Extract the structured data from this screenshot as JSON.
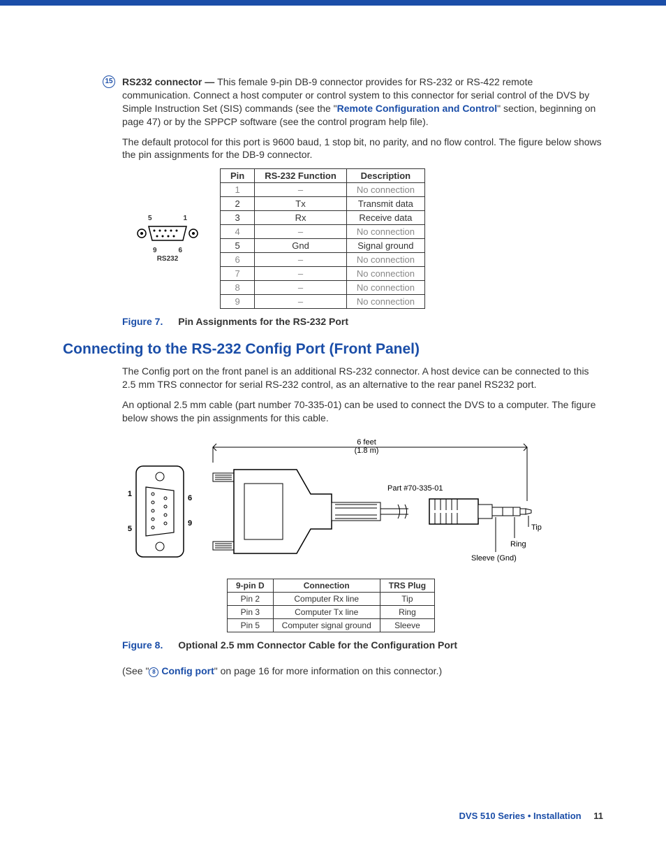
{
  "colors": {
    "accent": "#1b4ea8",
    "text": "#333333",
    "muted": "#888888",
    "border": "#333333",
    "bg": "#ffffff"
  },
  "item": {
    "num": "15",
    "title": "RS232 connector — ",
    "p1a": "This female 9-pin DB-9 connector provides for RS-232 or RS-422 remote communication. Connect a host computer or control system to this connector for serial control of the DVS by Simple Instruction Set (SIS) commands (see the \"",
    "link1": "Remote Configuration and Control",
    "p1b": "\" section, beginning on page 47) or by the SPPCP software (see the control program help file).",
    "p2": "The default protocol for this port is 9600 baud, 1 stop bit, no parity, and no flow control. The figure below shows the pin assignments for the DB-9 connector."
  },
  "db9": {
    "top_left": "5",
    "top_right": "1",
    "bot_left": "9",
    "bot_right": "6",
    "label": "RS232"
  },
  "pin_table": {
    "headers": [
      "Pin",
      "RS-232 Function",
      "Description"
    ],
    "rows": [
      {
        "pin": "1",
        "fn": "–",
        "desc": "No connection",
        "grey": true
      },
      {
        "pin": "2",
        "fn": "Tx",
        "desc": "Transmit data",
        "grey": false
      },
      {
        "pin": "3",
        "fn": "Rx",
        "desc": "Receive data",
        "grey": false
      },
      {
        "pin": "4",
        "fn": "–",
        "desc": "No connection",
        "grey": true
      },
      {
        "pin": "5",
        "fn": "Gnd",
        "desc": "Signal ground",
        "grey": false
      },
      {
        "pin": "6",
        "fn": "–",
        "desc": "No connection",
        "grey": true
      },
      {
        "pin": "7",
        "fn": "–",
        "desc": "No connection",
        "grey": true
      },
      {
        "pin": "8",
        "fn": "–",
        "desc": "No connection",
        "grey": true
      },
      {
        "pin": "9",
        "fn": "–",
        "desc": "No connection",
        "grey": true
      }
    ]
  },
  "fig7": {
    "label": "Figure 7.",
    "title": "Pin Assignments for the RS-232 Port"
  },
  "section": "Connecting to the RS-232 Config Port (Front Panel)",
  "sec_p1": "The Config port on the front panel is an additional RS-232 connector. A host device can be connected to this 2.5 mm TRS connector for serial RS-232 control, as an alternative to the rear panel RS232 port.",
  "sec_p2": "An optional 2.5 mm cable (part number 70-335-01) can be used to connect the DVS to a computer. The figure below shows the pin assignments for this cable.",
  "cable": {
    "length_top": "6 feet",
    "length_bot": "(1.8 m)",
    "part": "Part #70-335-01",
    "pins": {
      "p1": "1",
      "p6": "6",
      "p5": "5",
      "p9": "9"
    },
    "trs": {
      "tip": "Tip",
      "ring": "Ring",
      "sleeve": "Sleeve (Gnd)"
    }
  },
  "conn_table": {
    "headers": [
      "9-pin D",
      "Connection",
      "TRS Plug"
    ],
    "rows": [
      [
        "Pin 2",
        "Computer Rx line",
        "Tip"
      ],
      [
        "Pin 3",
        "Computer Tx line",
        "Ring"
      ],
      [
        "Pin 5",
        "Computer signal ground",
        "Sleeve"
      ]
    ]
  },
  "fig8": {
    "label": "Figure 8.",
    "title": "Optional 2.5 mm Connector Cable for the Configuration Port"
  },
  "xref": {
    "a": "(See \"",
    "num": "8",
    "link": "Config port",
    "b": "\" on page 16 for more information on this connector.)"
  },
  "footer": {
    "title": "DVS 510 Series • Installation",
    "page": "11"
  }
}
